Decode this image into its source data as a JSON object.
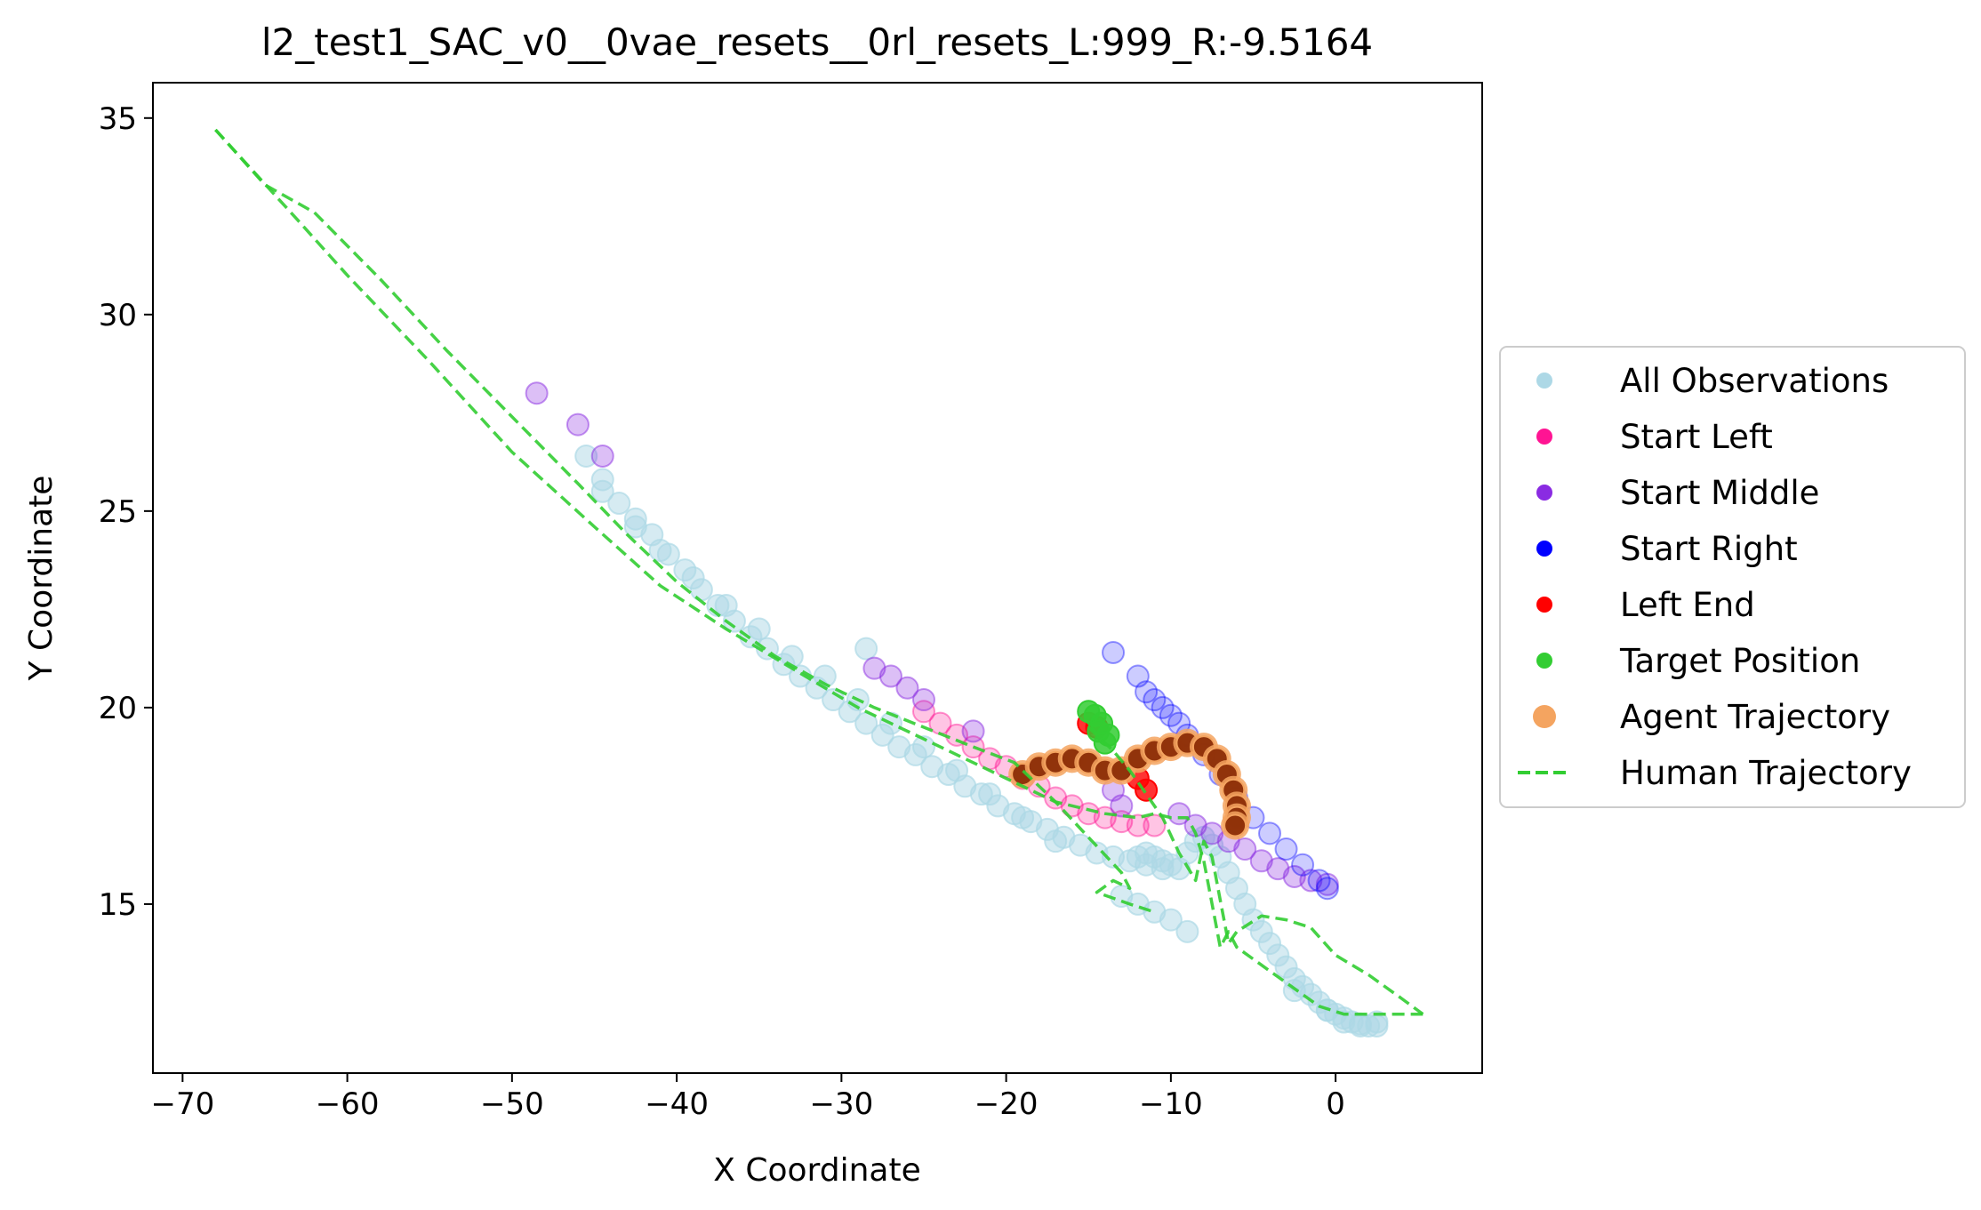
{
  "chart_data": {
    "type": "scatter",
    "title": "l2_test1_SAC_v0__0vae_resets__0rl_resets_L:999_R:-9.5164",
    "xlabel": "X Coordinate",
    "ylabel": "Y Coordinate",
    "xlim": [
      -71.8,
      8.9
    ],
    "ylim": [
      10.7,
      35.9
    ],
    "xticks": [
      -70,
      -60,
      -50,
      -40,
      -30,
      -20,
      -10,
      0
    ],
    "xtick_labels": [
      "−70",
      "−60",
      "−50",
      "−40",
      "−30",
      "−20",
      "−10",
      "0"
    ],
    "yticks": [
      15,
      20,
      25,
      30,
      35
    ],
    "ytick_labels": [
      "15",
      "20",
      "25",
      "30",
      "35"
    ],
    "grid": false,
    "legend_position": "center-right-outside",
    "legend": [
      {
        "label": "All Observations",
        "color": "#add8e6",
        "marker": "dot"
      },
      {
        "label": "Start Left",
        "color": "#ff1493",
        "marker": "dot"
      },
      {
        "label": "Start Middle",
        "color": "#8a2be2",
        "marker": "dot"
      },
      {
        "label": "Start Right",
        "color": "#0000ff",
        "marker": "dot"
      },
      {
        "label": "Left End",
        "color": "#ff0000",
        "marker": "dot"
      },
      {
        "label": "Target Position",
        "color": "#32cd32",
        "marker": "dot"
      },
      {
        "label": "Agent Trajectory",
        "color": "#f4a460",
        "marker": "dot"
      },
      {
        "label": "Human Trajectory",
        "color": "#32cd32",
        "marker": "dashed-line"
      }
    ],
    "series": [
      {
        "name": "All Observations",
        "kind": "scatter",
        "color": "#add8e6",
        "alpha": 0.5,
        "segments": [
          {
            "x": [
              -45.5,
              -44.5,
              -43.5,
              -42.5,
              -41.5,
              -40.5,
              -39.5,
              -38.5,
              -37.5,
              -36.5,
              -35.5,
              -34.5,
              -33.5,
              -32.5,
              -31.5,
              -30.5,
              -29.5,
              -28.5,
              -27.5,
              -26.5,
              -25.5,
              -24.5,
              -23.5,
              -22.5,
              -21.5,
              -20.5,
              -19.5,
              -18.5,
              -17.5,
              -16.5,
              -15.5,
              -14.5,
              -13.5,
              -12.5,
              -11.5,
              -10.5
            ],
            "y": [
              26.4,
              25.8,
              25.2,
              24.8,
              24.4,
              23.9,
              23.5,
              23.0,
              22.6,
              22.2,
              21.8,
              21.5,
              21.1,
              20.8,
              20.5,
              20.2,
              19.9,
              19.6,
              19.3,
              19.0,
              18.8,
              18.5,
              18.3,
              18.0,
              17.8,
              17.5,
              17.3,
              17.1,
              16.9,
              16.7,
              16.5,
              16.3,
              16.2,
              16.1,
              16.0,
              15.9
            ]
          },
          {
            "x": [
              -42.5,
              -41.0,
              -39.0,
              -37.0,
              -35.0,
              -33.0,
              -31.0,
              -29.0,
              -27.0,
              -25.0,
              -23.0,
              -21.0,
              -19.0,
              -17.0
            ],
            "y": [
              24.6,
              24.0,
              23.3,
              22.6,
              22.0,
              21.3,
              20.8,
              20.2,
              19.6,
              19.0,
              18.4,
              17.8,
              17.2,
              16.6
            ]
          },
          {
            "x": [
              -13.0,
              -12.0,
              -11.0,
              -10.0,
              -9.0
            ],
            "y": [
              15.2,
              15.0,
              14.8,
              14.6,
              14.3
            ]
          },
          {
            "x": [
              -12.0,
              -11.5,
              -11.0,
              -10.5,
              -10.0,
              -9.5,
              -9.0,
              -8.5,
              -8.0,
              -7.5,
              -7.0,
              -6.5,
              -6.0,
              -5.5,
              -5.0,
              -4.5,
              -4.0,
              -3.5,
              -3.0,
              -2.5,
              -2.0,
              -1.5,
              -1.0,
              -0.5,
              0.0,
              0.5,
              1.0,
              1.5,
              2.0,
              2.5
            ],
            "y": [
              16.2,
              16.3,
              16.2,
              16.1,
              16.0,
              15.9,
              16.3,
              16.6,
              16.7,
              16.5,
              16.2,
              15.8,
              15.4,
              15.0,
              14.6,
              14.3,
              14.0,
              13.7,
              13.4,
              13.1,
              12.9,
              12.7,
              12.5,
              12.3,
              12.2,
              12.1,
              12.0,
              11.95,
              11.9,
              11.9
            ]
          },
          {
            "x": [
              -0.5,
              0.5,
              1.5,
              2.5,
              -2.5,
              -28.5,
              -44.5
            ],
            "y": [
              12.3,
              12.0,
              11.9,
              12.0,
              12.8,
              21.5,
              25.5
            ]
          }
        ]
      },
      {
        "name": "Start Left",
        "kind": "scatter",
        "color": "#ff1493",
        "alpha": 0.25,
        "segments": [
          {
            "x": [
              -25.0,
              -24.0,
              -23.0,
              -22.0,
              -21.0,
              -20.0,
              -19.0,
              -18.0,
              -17.0,
              -16.0,
              -15.0,
              -14.0,
              -13.0,
              -12.0,
              -11.0
            ],
            "y": [
              19.9,
              19.6,
              19.3,
              19.0,
              18.7,
              18.5,
              18.2,
              18.0,
              17.7,
              17.5,
              17.3,
              17.2,
              17.1,
              17.0,
              17.0
            ]
          }
        ]
      },
      {
        "name": "Start Middle",
        "kind": "scatter",
        "color": "#8a2be2",
        "alpha": 0.3,
        "segments": [
          {
            "x": [
              -48.5,
              -46.0,
              -44.5,
              -28.0,
              -27.0,
              -26.0,
              -25.0,
              -22.0,
              -13.5,
              -13.0
            ],
            "y": [
              28.0,
              27.2,
              26.4,
              21.0,
              20.8,
              20.5,
              20.2,
              19.4,
              17.9,
              17.5
            ]
          },
          {
            "x": [
              -9.5,
              -8.5,
              -7.5,
              -6.5,
              -5.5,
              -4.5,
              -3.5,
              -2.5,
              -1.5,
              -0.5
            ],
            "y": [
              17.3,
              17.0,
              16.8,
              16.6,
              16.4,
              16.1,
              15.9,
              15.7,
              15.6,
              15.5
            ]
          }
        ]
      },
      {
        "name": "Start Right",
        "kind": "scatter",
        "color": "#0000ff",
        "alpha": 0.2,
        "segments": [
          {
            "x": [
              -13.5,
              -12.0,
              -11.5,
              -11.0,
              -10.5,
              -10.0,
              -9.5,
              -9.0,
              -8.0,
              -7.0,
              -6.0,
              -5.0,
              -4.0,
              -3.0,
              -2.0,
              -1.0,
              -0.5
            ],
            "y": [
              21.4,
              20.8,
              20.4,
              20.2,
              20.0,
              19.8,
              19.6,
              19.3,
              18.8,
              18.3,
              17.7,
              17.2,
              16.8,
              16.4,
              16.0,
              15.6,
              15.4
            ]
          }
        ]
      },
      {
        "name": "Left End",
        "kind": "scatter",
        "color": "#ff0000",
        "alpha": 0.8,
        "segments": [
          {
            "x": [
              -15.0,
              -14.5,
              -12.0,
              -11.5
            ],
            "y": [
              19.6,
              19.5,
              18.2,
              17.9
            ]
          }
        ]
      },
      {
        "name": "Target Position",
        "kind": "scatter",
        "color": "#32cd32",
        "alpha": 0.85,
        "segments": [
          {
            "x": [
              -15.0,
              -14.6,
              -14.2,
              -13.8,
              -14.0,
              -14.4
            ],
            "y": [
              19.9,
              19.8,
              19.6,
              19.3,
              19.1,
              19.4
            ]
          }
        ]
      },
      {
        "name": "Agent Trajectory",
        "kind": "scatter",
        "color": "#f4a460",
        "core_color": "#8b2c05",
        "alpha": 0.8,
        "segments": [
          {
            "x": [
              -19.0,
              -18.0,
              -17.0,
              -16.0,
              -15.0,
              -14.0,
              -13.0,
              -12.0,
              -11.0,
              -10.0,
              -9.0,
              -8.0,
              -7.2,
              -6.6,
              -6.2,
              -6.0,
              -6.0,
              -6.1
            ],
            "y": [
              18.3,
              18.5,
              18.6,
              18.7,
              18.6,
              18.4,
              18.4,
              18.7,
              18.9,
              19.0,
              19.1,
              19.0,
              18.7,
              18.3,
              17.9,
              17.5,
              17.2,
              17.0
            ]
          }
        ]
      },
      {
        "name": "Human Trajectory",
        "kind": "line",
        "color": "#32cd32",
        "style": "dashed",
        "segments": [
          {
            "x": [
              -68.0,
              -63.0,
              -60.0,
              -55.0,
              -50.0,
              -45.0,
              -41.0,
              -37.0,
              -33.0,
              -29.0,
              -27.0,
              -25.0,
              -22.0,
              -20.0,
              -17.0,
              -14.0,
              -12.0,
              -11.0,
              -10.0,
              -9.0,
              -8.5,
              -8.0,
              -7.5,
              -7.0,
              -6.5,
              -6.0,
              -5.0,
              -4.0,
              -3.0,
              -2.0,
              -1.0,
              0.5,
              2.0,
              5.3
            ],
            "y": [
              34.7,
              32.4,
              31.0,
              28.8,
              26.5,
              24.6,
              23.1,
              22.0,
              21.0,
              20.0,
              19.6,
              19.2,
              18.6,
              18.2,
              17.6,
              17.3,
              17.2,
              17.3,
              17.2,
              17.2,
              16.8,
              16.1,
              15.0,
              13.9,
              14.3,
              13.9,
              13.6,
              13.3,
              13.0,
              12.7,
              12.4,
              12.2,
              12.2,
              12.2
            ]
          },
          {
            "x": [
              -68.0,
              -65.0,
              -62.0,
              -58.0,
              -54.0,
              -50.0,
              -46.0,
              -43.0,
              -40.0,
              -37.0,
              -34.0,
              -31.0,
              -28.0,
              -25.0,
              -22.0,
              -19.5,
              -17.0,
              -15.0,
              -13.0,
              -12.5,
              -13.5,
              -14.5,
              -12.5,
              -11.0
            ],
            "y": [
              34.7,
              33.3,
              32.6,
              30.9,
              29.1,
              27.4,
              25.7,
              24.4,
              23.2,
              22.2,
              21.3,
              20.6,
              20.0,
              19.5,
              19.0,
              18.6,
              17.6,
              16.7,
              15.8,
              15.4,
              15.6,
              15.3,
              15.0,
              14.8
            ]
          },
          {
            "x": [
              -15.0,
              -13.5,
              -12.5,
              -11.5,
              -11.0,
              -10.5,
              -9.5,
              -8.5,
              -8.0,
              -7.5,
              -7.0,
              -6.5,
              -6.0,
              -4.5,
              -3.0,
              -1.5,
              0.0,
              2.0,
              4.0,
              5.3
            ],
            "y": [
              19.5,
              18.9,
              18.4,
              17.8,
              17.5,
              17.2,
              16.3,
              15.6,
              16.6,
              16.2,
              15.1,
              14.0,
              14.3,
              14.7,
              14.6,
              14.4,
              13.7,
              13.2,
              12.6,
              12.2
            ]
          }
        ]
      }
    ]
  }
}
